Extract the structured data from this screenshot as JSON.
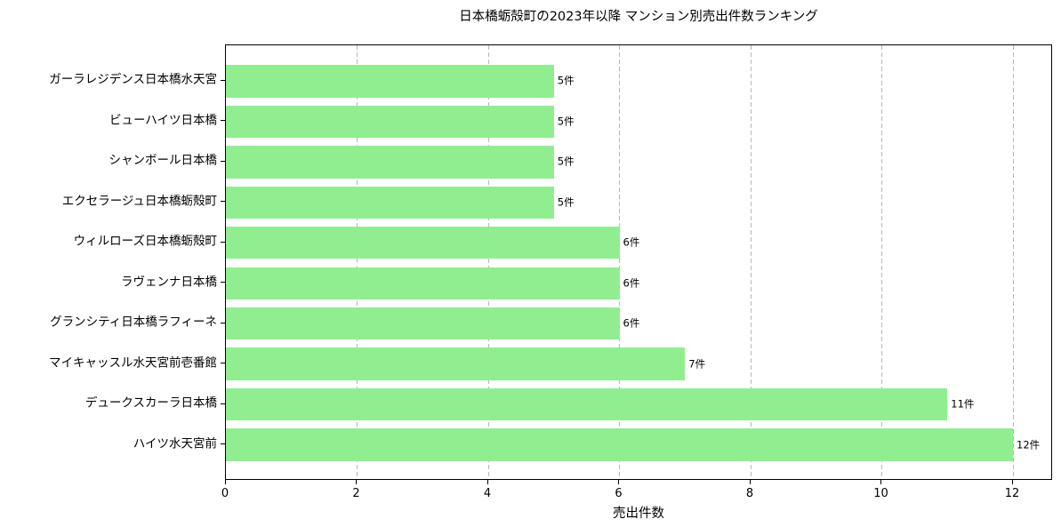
{
  "chart_data": {
    "type": "bar",
    "orientation": "horizontal",
    "title": "日本橋蛎殻町の2023年以降 マンション別売出件数ランキング",
    "xlabel": "売出件数",
    "ylabel": "",
    "categories": [
      "ガーラレジデンス日本橋水天宮",
      "ビューハイツ日本橋",
      "シャンボール日本橋",
      "エクセラージュ日本橋蛎殻町",
      "ウィルローズ日本橋蛎殻町",
      "ラヴェンナ日本橋",
      "グランシティ日本橋ラフィーネ",
      "マイキャッスル水天宮前壱番館",
      "デュークスカーラ日本橋",
      "ハイツ水天宮前"
    ],
    "values": [
      5,
      5,
      5,
      5,
      6,
      6,
      6,
      7,
      11,
      12
    ],
    "value_labels": [
      "5件",
      "5件",
      "5件",
      "5件",
      "6件",
      "6件",
      "6件",
      "7件",
      "11件",
      "12件"
    ],
    "unit_suffix": "件",
    "xticks": [
      0,
      2,
      4,
      6,
      8,
      10,
      12
    ],
    "xtick_labels": [
      "0",
      "2",
      "4",
      "6",
      "8",
      "10",
      "12"
    ],
    "xlim": [
      0,
      12.61
    ],
    "grid": true,
    "grid_style": "dashed",
    "legend": false,
    "colors": {
      "bar": "#90ee90",
      "grid": "#b8b8b8",
      "spine": "#000000",
      "text": "#000000",
      "background": "#ffffff"
    }
  }
}
